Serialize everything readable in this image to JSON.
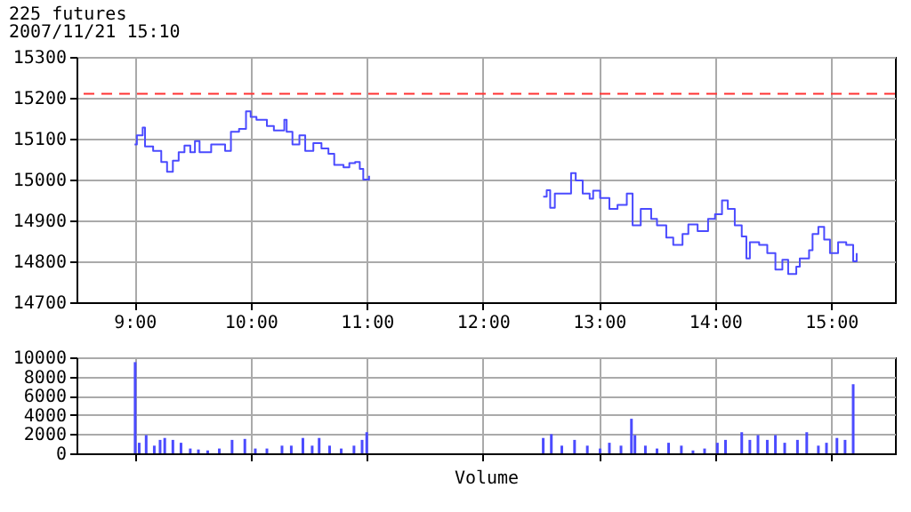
{
  "chart_data": [
    {
      "type": "step",
      "title": "225 futures",
      "subtitle": "2007/11/21 15:10",
      "x": [
        9.0,
        9.02,
        9.07,
        9.09,
        9.16,
        9.23,
        9.28,
        9.33,
        9.38,
        9.43,
        9.48,
        9.52,
        9.56,
        9.66,
        9.78,
        9.83,
        9.9,
        9.96,
        10.0,
        10.05,
        10.14,
        10.2,
        10.29,
        10.31,
        10.36,
        10.42,
        10.47,
        10.54,
        10.61,
        10.67,
        10.72,
        10.8,
        10.85,
        10.9,
        10.94,
        10.97,
        11.02,
        11.5,
        12.52,
        12.55,
        12.58,
        12.62,
        12.72,
        12.76,
        12.8,
        12.86,
        12.92,
        12.95,
        13.01,
        13.09,
        13.16,
        13.24,
        13.29,
        13.36,
        13.45,
        13.5,
        13.58,
        13.64,
        13.72,
        13.77,
        13.85,
        13.94,
        14.0,
        14.06,
        14.11,
        14.17,
        14.23,
        14.27,
        14.3,
        14.38,
        14.45,
        14.52,
        14.58,
        14.63,
        14.7,
        14.73,
        14.81,
        14.84,
        14.89,
        14.94,
        14.99,
        15.06,
        15.13,
        15.19,
        15.22
      ],
      "series": [
        {
          "color": "#4b4bff",
          "values": [
            15086,
            15108,
            15127,
            15081,
            15070,
            15043,
            15019,
            15046,
            15067,
            15083,
            15067,
            15094,
            15067,
            15086,
            15070,
            15117,
            15124,
            15167,
            15153,
            15146,
            15131,
            15120,
            15146,
            15117,
            15086,
            15108,
            15070,
            15089,
            15076,
            15063,
            15036,
            15030,
            15040,
            15043,
            15026,
            15000,
            15009,
            null,
            14958,
            14974,
            14931,
            14966,
            14966,
            15016,
            14998,
            14966,
            14953,
            14973,
            14955,
            14928,
            14938,
            14966,
            14888,
            14928,
            14904,
            14888,
            14858,
            14840,
            14867,
            14890,
            14874,
            14904,
            14915,
            14949,
            14928,
            14888,
            14861,
            14807,
            14847,
            14840,
            14820,
            14780,
            14804,
            14769,
            14787,
            14807,
            14827,
            14867,
            14884,
            14853,
            14820,
            14847,
            14840,
            14800,
            14820
          ]
        }
      ],
      "xlim": [
        8.5,
        15.55
      ],
      "xticks": [
        {
          "value": 9,
          "label": "9:00"
        },
        {
          "value": 10,
          "label": "10:00"
        },
        {
          "value": 11,
          "label": "11:00"
        },
        {
          "value": 12,
          "label": "12:00"
        },
        {
          "value": 13,
          "label": "13:00"
        },
        {
          "value": 14,
          "label": "14:00"
        },
        {
          "value": 15,
          "label": "15:00"
        }
      ],
      "ylim": [
        14700,
        15300
      ],
      "yticks": [
        14700,
        14800,
        14900,
        15000,
        15100,
        15200,
        15300
      ],
      "ref_lines": [
        {
          "axis": "y",
          "value": 15210,
          "color": "#ff3333",
          "line_style": "dashed"
        }
      ],
      "grid": true
    },
    {
      "type": "bar",
      "xlabel": "Volume",
      "x": [
        9.005,
        9.04,
        9.1,
        9.17,
        9.22,
        9.26,
        9.33,
        9.4,
        9.48,
        9.55,
        9.63,
        9.73,
        9.84,
        9.95,
        10.04,
        10.14,
        10.27,
        10.35,
        10.45,
        10.53,
        10.59,
        10.68,
        10.78,
        10.89,
        10.96,
        11.0,
        12.52,
        12.59,
        12.68,
        12.79,
        12.9,
        13.01,
        13.09,
        13.19,
        13.28,
        13.31,
        13.4,
        13.5,
        13.6,
        13.71,
        13.81,
        13.91,
        14.02,
        14.09,
        14.23,
        14.3,
        14.37,
        14.45,
        14.52,
        14.6,
        14.71,
        14.79,
        14.89,
        14.96,
        15.05,
        15.12,
        15.19
      ],
      "series": [
        {
          "color": "#4b4bff",
          "values": [
            9500,
            1100,
            1900,
            800,
            1400,
            1600,
            1400,
            1100,
            500,
            400,
            300,
            500,
            1400,
            1500,
            500,
            500,
            800,
            800,
            1600,
            800,
            1600,
            800,
            500,
            800,
            1400,
            2200,
            1600,
            2000,
            800,
            1400,
            800,
            500,
            1100,
            800,
            3600,
            1900,
            800,
            500,
            1100,
            800,
            300,
            500,
            1100,
            1400,
            2200,
            1400,
            1900,
            1400,
            1900,
            1100,
            1400,
            2200,
            800,
            1100,
            1600,
            1400,
            7200
          ]
        }
      ],
      "xlim": [
        8.5,
        15.55
      ],
      "xticks": [
        9,
        10,
        11,
        12,
        13,
        14,
        15
      ],
      "ylim": [
        0,
        10000
      ],
      "yticks": [
        0,
        2000,
        4000,
        6000,
        8000,
        10000
      ],
      "tick_labels": "y",
      "grid": true
    }
  ]
}
